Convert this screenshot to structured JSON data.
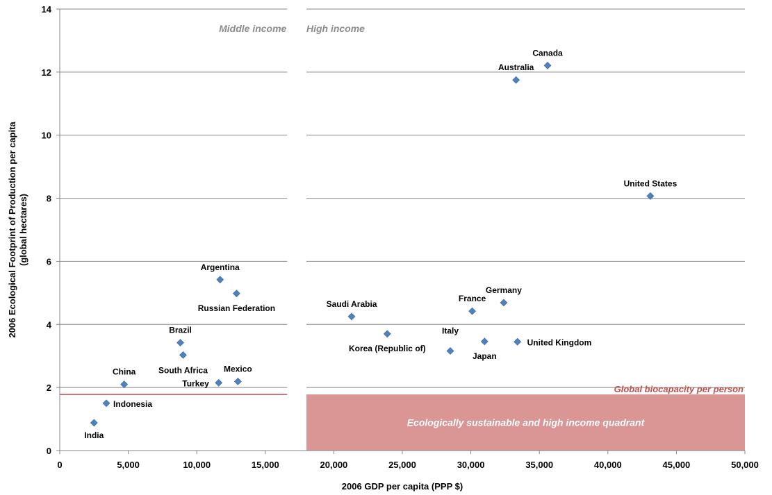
{
  "chart_data": {
    "type": "scatter",
    "title": "",
    "xlabel": "2006 GDP per capita (PPP $)",
    "ylabel_line1": "2006 Ecological Footprint of Production per capita",
    "ylabel_line2": "(global hectares)",
    "xlim": [
      0,
      50000
    ],
    "ylim": [
      0,
      14
    ],
    "x_ticks": [
      "0",
      "5,000",
      "10,000",
      "15,000",
      "20,000",
      "25,000",
      "30,000",
      "35,000",
      "40,000",
      "45,000",
      "50,000"
    ],
    "y_ticks": [
      "0",
      "2",
      "4",
      "6",
      "8",
      "10",
      "12",
      "14"
    ],
    "gridlines": true,
    "income_threshold_x": 16600,
    "high_income_panel_start_x": 18000,
    "region_labels": {
      "middle": "Middle income",
      "high": "High income"
    },
    "biocapacity": {
      "value": 1.78,
      "label": "Global biocapacity per person",
      "color": "#c00000"
    },
    "quadrant": {
      "label": "Ecologically sustainable and high income quadrant",
      "x_from": 18000,
      "x_to": 50000,
      "y_from": 0,
      "y_to": 1.78,
      "color": "#d99694"
    },
    "marker_color": "#4f81bd",
    "points": [
      {
        "name": "India",
        "x": 2500,
        "y": 0.88
      },
      {
        "name": "Indonesia",
        "x": 3400,
        "y": 1.5
      },
      {
        "name": "China",
        "x": 4700,
        "y": 2.1
      },
      {
        "name": "Brazil",
        "x": 8800,
        "y": 3.42
      },
      {
        "name": "South Africa",
        "x": 9000,
        "y": 3.03
      },
      {
        "name": "Argentina",
        "x": 11700,
        "y": 5.42
      },
      {
        "name": "Turkey",
        "x": 11600,
        "y": 2.15
      },
      {
        "name": "Russian Federation",
        "x": 12900,
        "y": 4.98
      },
      {
        "name": "Mexico",
        "x": 13000,
        "y": 2.19
      },
      {
        "name": "Saudi Arabia",
        "x": 21300,
        "y": 4.25
      },
      {
        "name": "Korea (Republic of)",
        "x": 23900,
        "y": 3.7
      },
      {
        "name": "Italy",
        "x": 28500,
        "y": 3.16
      },
      {
        "name": "France",
        "x": 30100,
        "y": 4.42
      },
      {
        "name": "Japan",
        "x": 31000,
        "y": 3.46
      },
      {
        "name": "Germany",
        "x": 32400,
        "y": 4.69
      },
      {
        "name": "United Kingdom",
        "x": 33400,
        "y": 3.45
      },
      {
        "name": "Australia",
        "x": 33300,
        "y": 11.75
      },
      {
        "name": "Canada",
        "x": 35600,
        "y": 12.21
      },
      {
        "name": "United States",
        "x": 43100,
        "y": 8.07
      }
    ]
  }
}
